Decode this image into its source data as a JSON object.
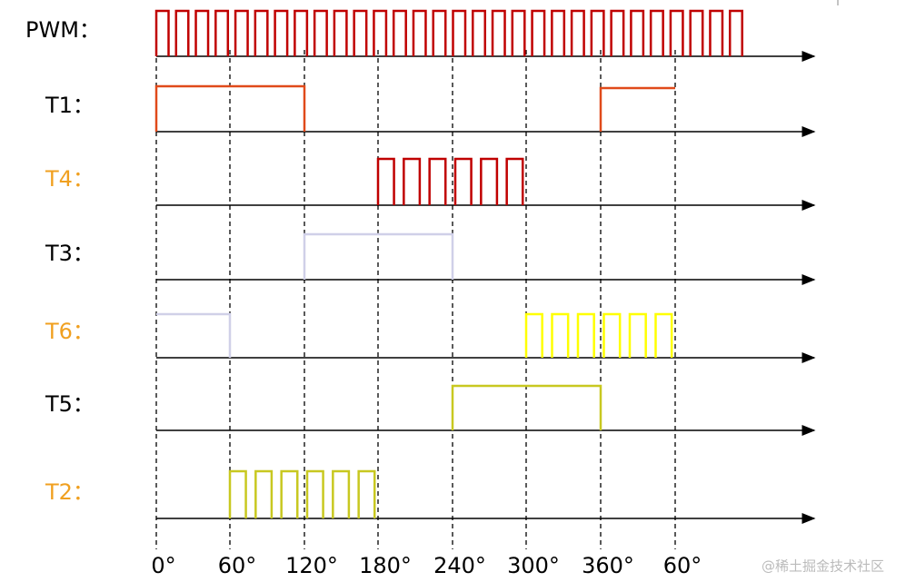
{
  "rows": [
    {
      "label": "PWM："
    },
    {
      "label": "T1："
    },
    {
      "label": "T4："
    },
    {
      "label": "T3："
    },
    {
      "label": "T6："
    },
    {
      "label": "T5："
    },
    {
      "label": "T2："
    }
  ],
  "angles": [
    "0°",
    "60°",
    "120°",
    "180°",
    "240°",
    "300°",
    "360°",
    "60°"
  ],
  "watermark": "@稀土掘金技术社区"
}
